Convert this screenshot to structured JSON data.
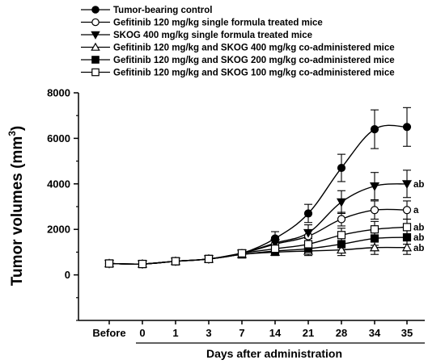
{
  "chart_data": {
    "type": "line",
    "title": "",
    "xlabel": "Days after administration",
    "ylabel": "Tumor volumes (mm",
    "ylabel_sup": "3",
    "ylabel_close": ")",
    "categories": [
      "Before",
      "0",
      "1",
      "3",
      "7",
      "14",
      "21",
      "28",
      "34",
      "35"
    ],
    "ylim": [
      -2000,
      8000
    ],
    "yticks": [
      "0",
      "2000",
      "4000",
      "6000",
      "8000"
    ],
    "grid": false,
    "legend_position": "top-left",
    "series": [
      {
        "name": "Tumor-bearing control",
        "marker": "circle-filled",
        "values": [
          500,
          480,
          600,
          700,
          950,
          1600,
          2700,
          4700,
          6400,
          6500
        ],
        "errors": [
          0,
          0,
          80,
          80,
          150,
          300,
          400,
          600,
          850,
          850
        ]
      },
      {
        "name": "Gefitinib 120 mg/kg single formula treated mice",
        "marker": "circle-open",
        "values": [
          500,
          480,
          600,
          700,
          950,
          1350,
          1700,
          2450,
          2850,
          2850
        ],
        "errors": [
          0,
          0,
          70,
          70,
          120,
          200,
          250,
          300,
          400,
          400
        ],
        "annotation": "a"
      },
      {
        "name": "SKOG 400 mg/kg single formula treated mice",
        "marker": "triangle-down-filled",
        "values": [
          500,
          480,
          600,
          700,
          950,
          1400,
          1850,
          3200,
          3900,
          4000
        ],
        "errors": [
          0,
          0,
          70,
          70,
          120,
          250,
          350,
          500,
          600,
          600
        ],
        "annotation": "ab"
      },
      {
        "name": "Gefitinib 120 mg/kg and SKOG 400 mg/kg co-administered mice",
        "marker": "triangle-up-open",
        "values": [
          500,
          480,
          600,
          700,
          900,
          1000,
          1050,
          1100,
          1200,
          1200
        ],
        "errors": [
          0,
          0,
          60,
          60,
          100,
          150,
          200,
          250,
          300,
          300
        ],
        "annotation": "ab"
      },
      {
        "name": "Gefitinib 120 mg/kg and SKOG 200 mg/kg co-administered mice",
        "marker": "square-filled",
        "values": [
          500,
          480,
          600,
          700,
          900,
          1050,
          1150,
          1350,
          1600,
          1650
        ],
        "errors": [
          0,
          0,
          60,
          60,
          100,
          150,
          200,
          250,
          300,
          300
        ],
        "annotation": "ab"
      },
      {
        "name": "Gefitinib 120 mg/kg and SKOG 100 mg/kg co-administered mice",
        "marker": "square-open",
        "values": [
          500,
          480,
          600,
          700,
          950,
          1150,
          1350,
          1750,
          2000,
          2100
        ],
        "errors": [
          0,
          0,
          60,
          60,
          100,
          200,
          250,
          300,
          350,
          350
        ],
        "annotation": "ab"
      }
    ]
  }
}
